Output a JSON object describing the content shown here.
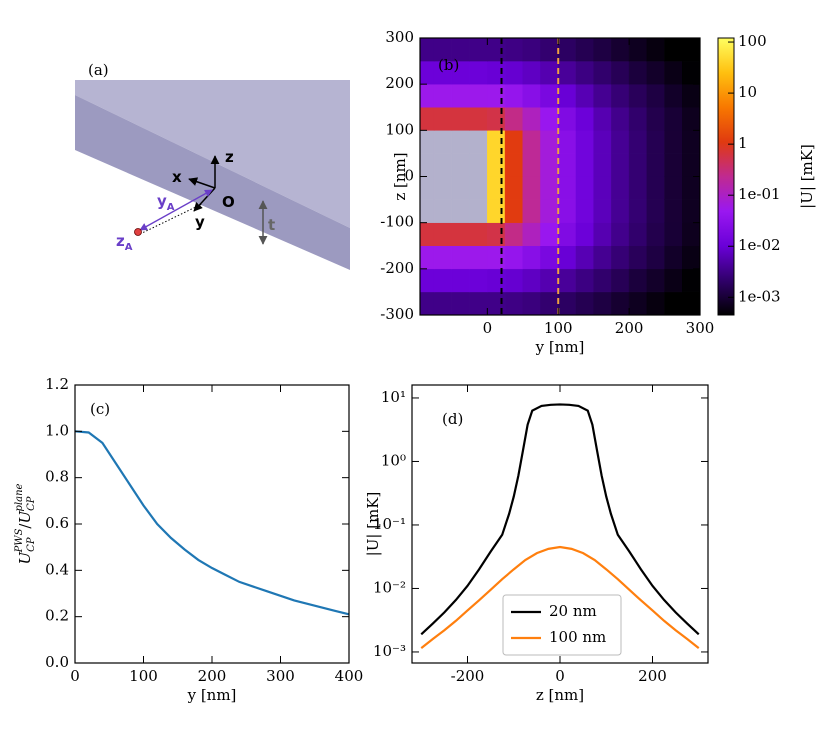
{
  "diagram": {
    "label": "(a)",
    "x": "x",
    "y": "y",
    "z": "z",
    "origin": "O",
    "t": "t",
    "ya": {
      "base": "y",
      "sub": "A"
    },
    "za": {
      "base": "z",
      "sub": "A"
    }
  },
  "chart_data": [
    {
      "type": "heatmap",
      "label": "(b)",
      "xlabel": "y [nm]",
      "ylabel": "z [nm]",
      "xlim": [
        -95,
        300
      ],
      "ylim": [
        -300,
        300
      ],
      "xticks": [
        0,
        100,
        200,
        300
      ],
      "yticks": [
        -300,
        -200,
        -100,
        0,
        100,
        200,
        300
      ],
      "x": [
        -87.5,
        -62.5,
        -37.5,
        -12.5,
        12.5,
        37.5,
        62.5,
        87.5,
        112.5,
        137.5,
        162.5,
        187.5,
        212.5,
        237.5,
        262.5,
        287.5
      ],
      "y": [
        -275,
        -225,
        -175,
        -125,
        -75,
        -25,
        25,
        75,
        125,
        175,
        225,
        275
      ],
      "values": [
        [
          0.0033,
          0.0033,
          0.0033,
          0.0033,
          0.0033,
          0.0031,
          0.0028,
          0.0023,
          0.0019,
          0.0015,
          0.0012,
          0.00093,
          0.00072,
          0.00056,
          0.00044,
          0.00035
        ],
        [
          0.011,
          0.011,
          0.011,
          0.011,
          0.01,
          0.0093,
          0.0076,
          0.0058,
          0.0042,
          0.003,
          0.0022,
          0.0016,
          0.0011,
          0.00083,
          0.00062,
          0.00047
        ],
        [
          0.053,
          0.053,
          0.053,
          0.053,
          0.052,
          0.041,
          0.027,
          0.017,
          0.01,
          0.0061,
          0.0038,
          0.0025,
          0.0017,
          0.0012,
          0.00082,
          0.0006
        ],
        [
          0.63,
          0.63,
          0.63,
          0.63,
          0.56,
          0.26,
          0.11,
          0.047,
          0.021,
          0.011,
          0.0059,
          0.0035,
          0.0022,
          0.0014,
          0.00099,
          0.0007
        ],
        [
          null,
          null,
          null,
          null,
          43,
          1.15,
          0.21,
          0.07,
          0.028,
          0.013,
          0.0068,
          0.0039,
          0.0024,
          0.0015,
          0.001,
          0.00073
        ],
        [
          null,
          null,
          null,
          null,
          43,
          1.15,
          0.21,
          0.07,
          0.028,
          0.013,
          0.0068,
          0.0039,
          0.0024,
          0.0015,
          0.001,
          0.00073
        ],
        [
          null,
          null,
          null,
          null,
          43,
          1.15,
          0.21,
          0.07,
          0.028,
          0.013,
          0.0068,
          0.0039,
          0.0024,
          0.0015,
          0.001,
          0.00073
        ],
        [
          null,
          null,
          null,
          null,
          43,
          1.15,
          0.21,
          0.07,
          0.028,
          0.013,
          0.0068,
          0.0039,
          0.0024,
          0.0015,
          0.001,
          0.00073
        ],
        [
          0.63,
          0.63,
          0.63,
          0.63,
          0.56,
          0.26,
          0.11,
          0.047,
          0.021,
          0.011,
          0.0059,
          0.0035,
          0.0022,
          0.0014,
          0.00099,
          0.0007
        ],
        [
          0.053,
          0.053,
          0.053,
          0.053,
          0.052,
          0.041,
          0.027,
          0.017,
          0.01,
          0.0061,
          0.0038,
          0.0025,
          0.0017,
          0.0012,
          0.00082,
          0.0006
        ],
        [
          0.011,
          0.011,
          0.011,
          0.011,
          0.01,
          0.0093,
          0.0076,
          0.0058,
          0.0042,
          0.003,
          0.0022,
          0.0016,
          0.0011,
          0.00083,
          0.00062,
          0.00047
        ],
        [
          0.0033,
          0.0033,
          0.0033,
          0.0033,
          0.0033,
          0.0031,
          0.0028,
          0.0023,
          0.0019,
          0.0015,
          0.0012,
          0.00093,
          0.00072,
          0.00056,
          0.00044,
          0.00035
        ]
      ],
      "null_color": "#b3b1cc",
      "vlines": [
        {
          "x": 20,
          "color": "#000000"
        },
        {
          "x": 100,
          "color": "#f0a040"
        }
      ],
      "colorbar": {
        "label": "|U| [mK]",
        "log": true,
        "clim": [
          0.00045,
          120
        ],
        "ticks": [
          100,
          10,
          1,
          {
            "value": 0.1,
            "label": "1e-01"
          },
          {
            "value": 0.01,
            "label": "1e-02"
          },
          {
            "value": 0.001,
            "label": "1e-03"
          }
        ],
        "colormap": [
          "#000000",
          "#30006a",
          "#6a00d8",
          "#9a18f0",
          "#c02a90",
          "#e03a10",
          "#f87800",
          "#ffc010",
          "#ffff60"
        ]
      }
    },
    {
      "type": "line",
      "label": "(c)",
      "xlabel": "y [nm]",
      "ylabel": {
        "num": {
          "base": "U",
          "sub": "CP",
          "sup": "PWS"
        },
        "sep": "/",
        "den": {
          "base": "U",
          "sub": "CP",
          "sup": "plane"
        }
      },
      "xlim": [
        0,
        400
      ],
      "ylim": [
        0,
        1.2
      ],
      "xticks": [
        0,
        100,
        200,
        300,
        400
      ],
      "yticks": [
        {
          "value": 0,
          "label": "0.0"
        },
        0.2,
        0.4,
        0.6,
        0.8,
        {
          "value": 1,
          "label": "1.0"
        },
        1.2
      ],
      "x": [
        0,
        20,
        40,
        60,
        80,
        100,
        120,
        140,
        160,
        180,
        200,
        220,
        240,
        260,
        280,
        300,
        320,
        340,
        360,
        380,
        400
      ],
      "series": [
        {
          "color": "#1f77b4",
          "values": [
            1.0,
            0.995,
            0.95,
            0.86,
            0.77,
            0.68,
            0.6,
            0.54,
            0.49,
            0.445,
            0.41,
            0.38,
            0.35,
            0.33,
            0.31,
            0.29,
            0.27,
            0.255,
            0.24,
            0.225,
            0.21
          ]
        }
      ]
    },
    {
      "type": "line",
      "label": "(d)",
      "xlabel": "z [nm]",
      "ylabel": "|U| [mK]",
      "ylog": true,
      "legend": "lower center",
      "xlim": [
        -320,
        320
      ],
      "ylim": [
        0.00067,
        16
      ],
      "xticks": [
        -200,
        0,
        200
      ],
      "yticks": [
        {
          "value": 0.001,
          "label": "10⁻³"
        },
        {
          "value": 0.01,
          "label": "10⁻²"
        },
        {
          "value": 0.1,
          "label": "10⁻¹"
        },
        {
          "value": 1,
          "label": "10⁰"
        },
        {
          "value": 10,
          "label": "10¹"
        }
      ],
      "series": [
        {
          "name": "20 nm",
          "color": "#000000",
          "x": [
            -300,
            -275,
            -250,
            -225,
            -200,
            -175,
            -150,
            -125,
            -110,
            -100,
            -90,
            -80,
            -70,
            -60,
            -40,
            -20,
            0,
            20,
            40,
            60,
            70,
            80,
            90,
            100,
            110,
            125,
            150,
            175,
            200,
            225,
            250,
            275,
            300
          ],
          "values": [
            0.0019,
            0.0028,
            0.0042,
            0.0066,
            0.011,
            0.02,
            0.038,
            0.07,
            0.15,
            0.28,
            0.6,
            1.5,
            3.8,
            6.3,
            7.5,
            7.8,
            7.9,
            7.8,
            7.5,
            6.3,
            3.8,
            1.5,
            0.6,
            0.28,
            0.15,
            0.07,
            0.038,
            0.02,
            0.011,
            0.0066,
            0.0042,
            0.0028,
            0.0019
          ]
        },
        {
          "name": "100 nm",
          "color": "#ff7f0e",
          "x": [
            -300,
            -275,
            -250,
            -225,
            -200,
            -175,
            -150,
            -125,
            -100,
            -75,
            -50,
            -25,
            0,
            25,
            50,
            75,
            100,
            125,
            150,
            175,
            200,
            225,
            250,
            275,
            300
          ],
          "values": [
            0.00115,
            0.0016,
            0.0022,
            0.0031,
            0.0045,
            0.0065,
            0.0095,
            0.014,
            0.02,
            0.028,
            0.036,
            0.042,
            0.045,
            0.042,
            0.036,
            0.028,
            0.02,
            0.014,
            0.0095,
            0.0065,
            0.0045,
            0.0031,
            0.0022,
            0.0016,
            0.00115
          ]
        }
      ]
    }
  ]
}
